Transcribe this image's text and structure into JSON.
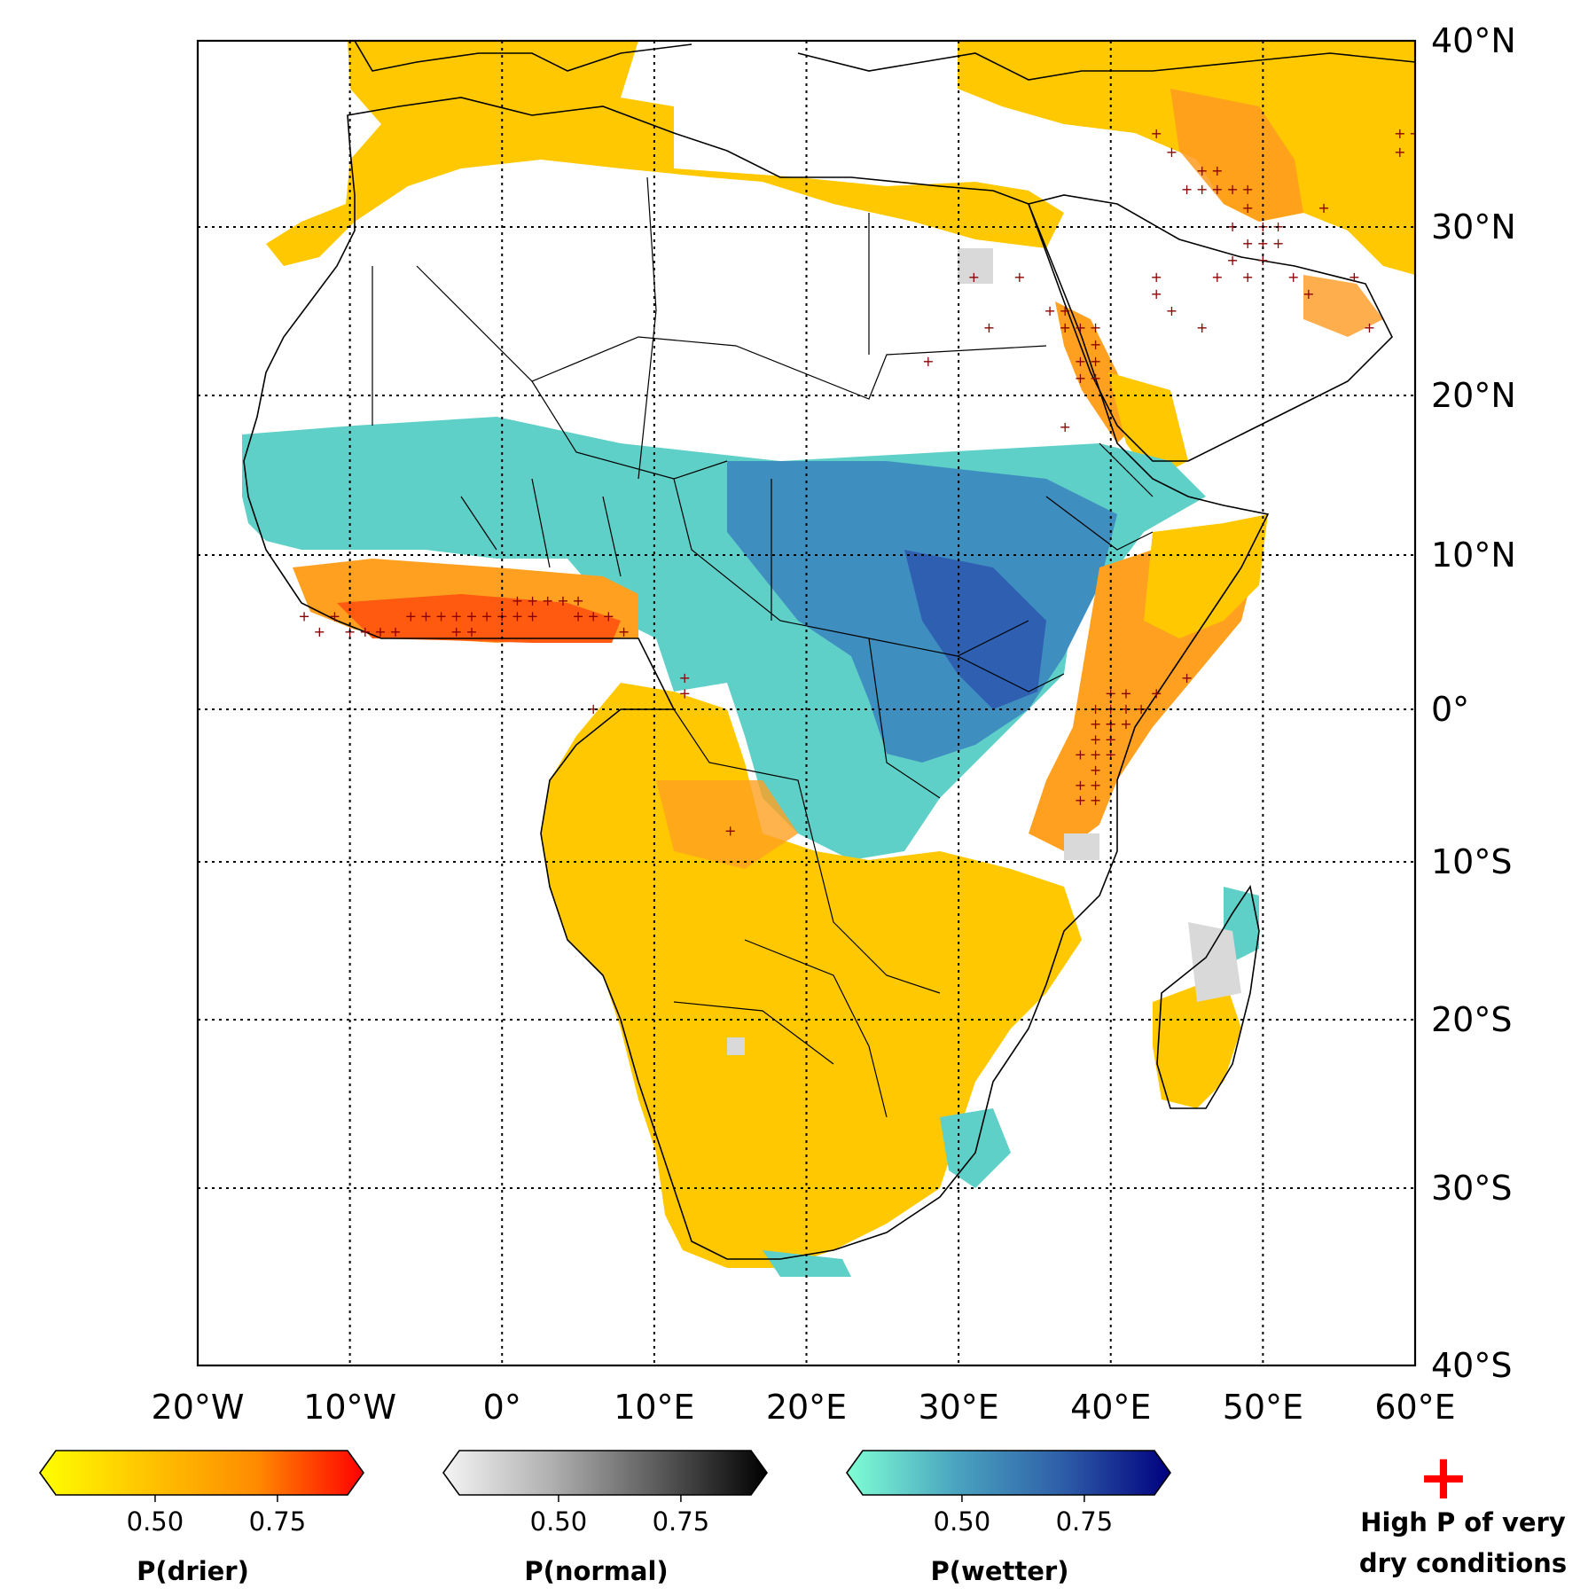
{
  "map": {
    "lat_labels": [
      "40°N",
      "30°N",
      "20°N",
      "10°N",
      "0°",
      "10°S",
      "20°S",
      "30°S",
      "40°S"
    ],
    "lon_labels": [
      "20°W",
      "10°W",
      "0°",
      "10°E",
      "20°E",
      "30°E",
      "40°E",
      "50°E",
      "60°E"
    ],
    "extent": {
      "lon_min": -20,
      "lon_max": 60,
      "lat_min": -40,
      "lat_max": 40
    },
    "gridlines": true
  },
  "colorbars": [
    {
      "title": "P(drier)",
      "ticks": [
        "0.50",
        "0.75"
      ],
      "colors": [
        "#ffff00",
        "#ffc400",
        "#ff8c00",
        "#ff0000"
      ]
    },
    {
      "title": "P(normal)",
      "ticks": [
        "0.50",
        "0.75"
      ],
      "colors": [
        "#f5f5f5",
        "#b0b0b0",
        "#5a5a5a",
        "#000000"
      ]
    },
    {
      "title": "P(wetter)",
      "ticks": [
        "0.50",
        "0.75"
      ],
      "colors": [
        "#7fffd4",
        "#4aa5c0",
        "#2e5ea8",
        "#00007f"
      ]
    }
  ],
  "legend": {
    "marker": "+",
    "marker_color": "#ff0000",
    "line1": "High P of very",
    "line2": "dry conditions"
  },
  "colors": {
    "drier": "#ffc800",
    "drier_strong": "#ff9a10",
    "drier_very": "#ff5a10",
    "normal": "#d9d9d9",
    "wetter": "#5fd0c8",
    "wetter_strong": "#3f8ec0",
    "wetter_very": "#2f5fb0",
    "cross": "#8b0000"
  }
}
